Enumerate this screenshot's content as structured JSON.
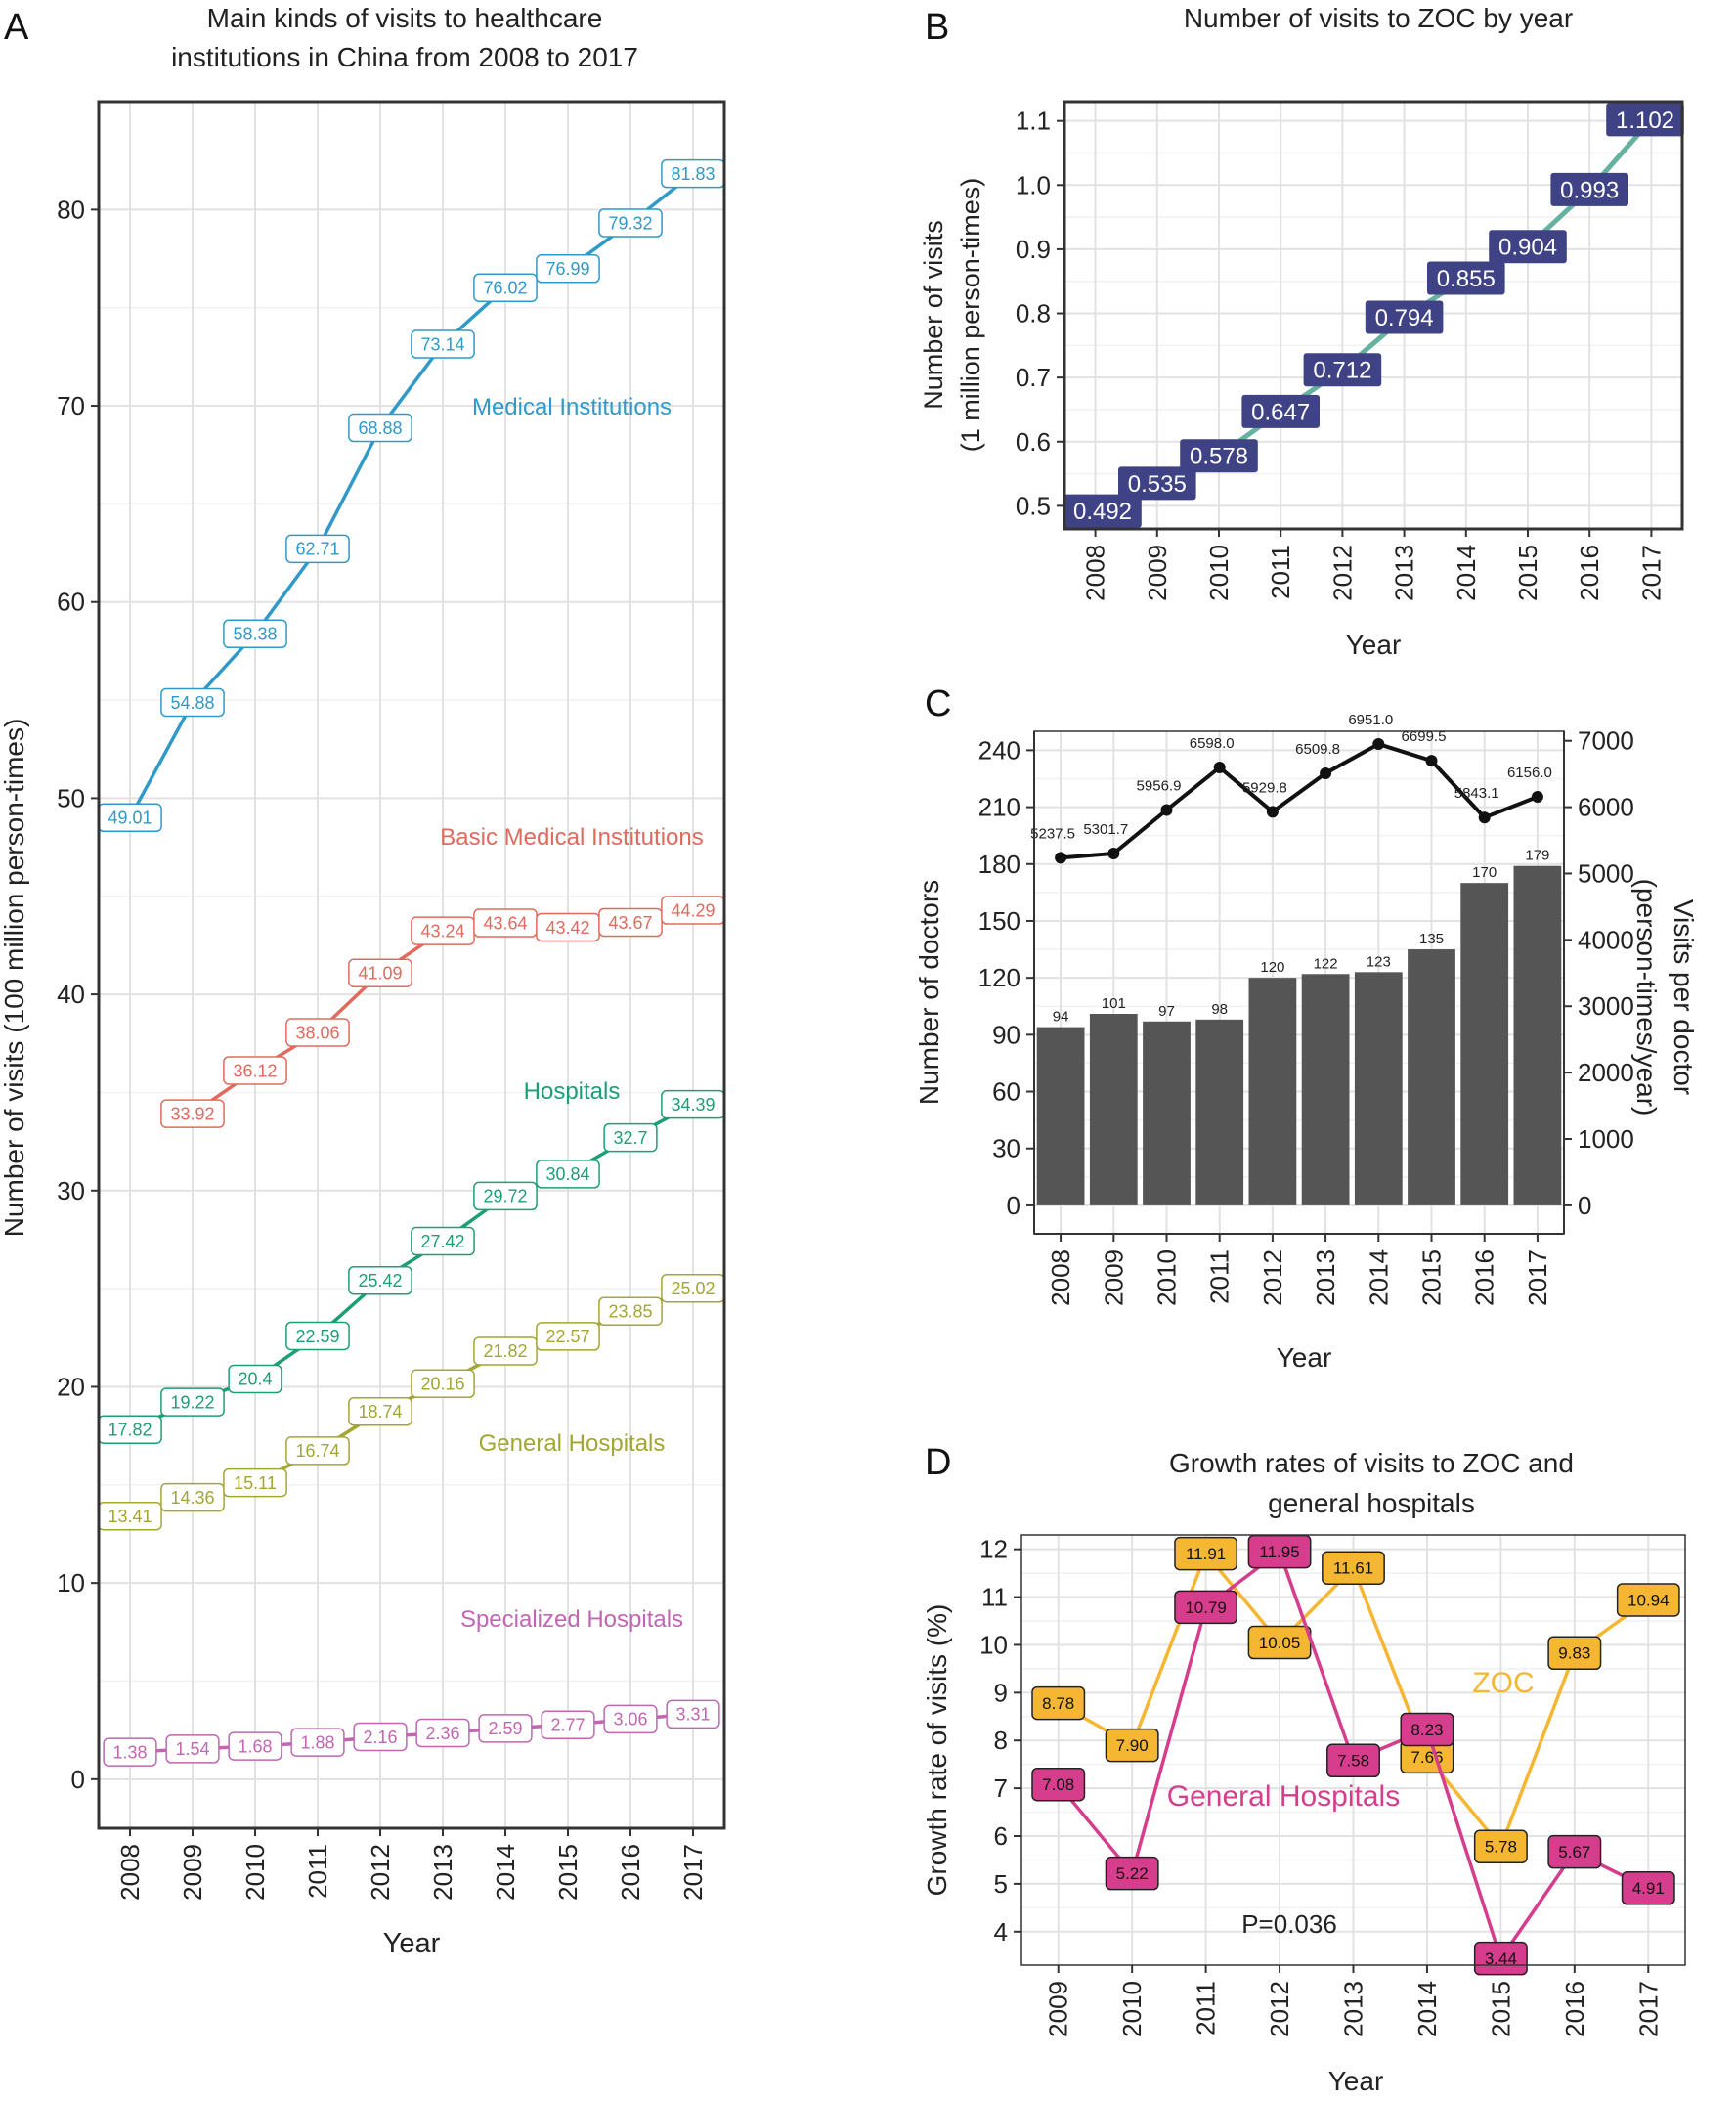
{
  "chart_data": [
    {
      "panel": "A",
      "type": "line",
      "title_lines": [
        "Main kinds of visits to healthcare",
        "institutions in China from 2008 to 2017"
      ],
      "xlabel": "Year",
      "ylabel": "Number of visits (100 million person-times)",
      "x": [
        "2008",
        "2009",
        "2010",
        "2011",
        "2012",
        "2013",
        "2014",
        "2015",
        "2016",
        "2017"
      ],
      "ylim": [
        -2.5,
        85.5
      ],
      "yticks": [
        0,
        10,
        20,
        30,
        40,
        50,
        60,
        70,
        80
      ],
      "grid": true,
      "series": [
        {
          "name": "Medical Institutions",
          "color": "#2f9ac9",
          "values": [
            49.01,
            54.88,
            58.38,
            62.71,
            68.88,
            73.14,
            76.02,
            76.99,
            79.32,
            81.83
          ],
          "labels": [
            "49.01",
            "54.88",
            "58.38",
            "62.71",
            "68.88",
            "73.14",
            "76.02",
            "76.99",
            "79.32",
            "81.83"
          ]
        },
        {
          "name": "Basic Medical Institutions",
          "color": "#e06a5e",
          "values": [
            null,
            33.92,
            36.12,
            38.06,
            41.09,
            43.24,
            43.64,
            43.42,
            43.67,
            44.29
          ],
          "labels": [
            null,
            "33.92",
            "36.12",
            "38.06",
            "41.09",
            "43.24",
            "43.64",
            "43.42",
            "43.67",
            "44.29"
          ]
        },
        {
          "name": "Hospitals",
          "color": "#1e9e74",
          "values": [
            17.82,
            19.22,
            20.4,
            22.59,
            25.42,
            27.42,
            29.72,
            30.84,
            32.7,
            34.39
          ],
          "labels": [
            "17.82",
            "19.22",
            "20.4",
            "22.59",
            "25.42",
            "27.42",
            "29.72",
            "30.84",
            "32.7",
            "34.39"
          ]
        },
        {
          "name": "General Hospitals",
          "color": "#a2a632",
          "values": [
            13.41,
            14.36,
            15.11,
            16.74,
            18.74,
            20.16,
            21.82,
            22.57,
            23.85,
            25.02
          ],
          "labels": [
            "13.41",
            "14.36",
            "15.11",
            "16.74",
            "18.74",
            "20.16",
            "21.82",
            "22.57",
            "23.85",
            "25.02"
          ]
        },
        {
          "name": "Specialized Hospitals",
          "color": "#c266b3",
          "values": [
            1.38,
            1.54,
            1.68,
            1.88,
            2.16,
            2.36,
            2.59,
            2.77,
            3.06,
            3.31
          ],
          "labels": [
            "1.38",
            "1.54",
            "1.68",
            "1.88",
            "2.16",
            "2.36",
            "2.59",
            "2.77",
            "3.06",
            "3.31"
          ]
        }
      ]
    },
    {
      "panel": "B",
      "type": "line",
      "title": "Number of visits to ZOC by year",
      "xlabel": "Year",
      "ylabel_lines": [
        "Number of visits",
        "(1 million person-times)"
      ],
      "x": [
        "2008",
        "2009",
        "2010",
        "2011",
        "2012",
        "2013",
        "2014",
        "2015",
        "2016",
        "2017"
      ],
      "ylim": [
        0.464,
        1.13
      ],
      "yticks": [
        0.5,
        0.6,
        0.7,
        0.8,
        0.9,
        1.0,
        1.1
      ],
      "ytick_labels": [
        "0.5",
        "0.6",
        "0.7",
        "0.8",
        "0.9",
        "1.0",
        "1.1"
      ],
      "grid": true,
      "series": [
        {
          "color": "#66b2a0",
          "label_fill": "#3f4386",
          "values": [
            0.492,
            0.535,
            0.578,
            0.647,
            0.712,
            0.794,
            0.855,
            0.904,
            0.993,
            1.102
          ],
          "labels": [
            "0.492",
            "0.535",
            "0.578",
            "0.647",
            "0.712",
            "0.794",
            "0.855",
            "0.904",
            "0.993",
            "1.102"
          ]
        }
      ]
    },
    {
      "panel": "C",
      "type": "bar",
      "xlabel": "Year",
      "ylabel": "Number of doctors",
      "y2label_lines": [
        "Visits per doctor",
        "(person-times/year)"
      ],
      "categories": [
        "2008",
        "2009",
        "2010",
        "2011",
        "2012",
        "2013",
        "2014",
        "2015",
        "2016",
        "2017"
      ],
      "ylim": [
        -15,
        250
      ],
      "yticks": [
        0,
        30,
        60,
        90,
        120,
        150,
        180,
        210,
        240
      ],
      "y2lim": [
        -429,
        7143
      ],
      "y2ticks": [
        0,
        1000,
        2000,
        3000,
        4000,
        5000,
        6000,
        7000
      ],
      "grid": true,
      "series": [
        {
          "name": "Number of doctors",
          "type": "bar",
          "color": "#555555",
          "values": [
            94,
            101,
            97,
            98,
            120,
            122,
            123,
            135,
            170,
            179
          ],
          "labels": [
            "94",
            "101",
            "97",
            "98",
            "120",
            "122",
            "123",
            "135",
            "170",
            "179"
          ]
        },
        {
          "name": "Visits per doctor",
          "type": "line",
          "axis": "right",
          "color": "#111111",
          "values": [
            5237.5,
            5301.7,
            5956.9,
            6598.0,
            5929.8,
            6509.8,
            6951.0,
            6699.5,
            5843.1,
            6156.0
          ],
          "labels": [
            "5237.5",
            "5301.7",
            "5956.9",
            "6598.0",
            "5929.8",
            "6509.8",
            "6951.0",
            "6699.5",
            "5843.1",
            "6156.0"
          ]
        }
      ]
    },
    {
      "panel": "D",
      "type": "line",
      "title_lines": [
        "Growth rates of visits to ZOC and",
        "general hospitals"
      ],
      "xlabel": "Year",
      "ylabel": "Growth rate of visits (%)",
      "x": [
        "2009",
        "2010",
        "2011",
        "2012",
        "2013",
        "2014",
        "2015",
        "2016",
        "2017"
      ],
      "ylim": [
        3.3,
        12.3
      ],
      "yticks": [
        4,
        5,
        6,
        7,
        8,
        9,
        10,
        11,
        12
      ],
      "grid": true,
      "annotation": "P=0.036",
      "series": [
        {
          "name": "ZOC",
          "color": "#f5b731",
          "values": [
            8.78,
            7.9,
            11.91,
            10.05,
            11.61,
            7.66,
            5.78,
            9.83,
            10.94
          ],
          "labels": [
            "8.78",
            "7.90",
            "11.91",
            "10.05",
            "11.61",
            "7.66",
            "5.78",
            "9.83",
            "10.94"
          ]
        },
        {
          "name": "General Hospitals",
          "color": "#d63d8c",
          "values": [
            7.08,
            5.22,
            10.79,
            11.95,
            7.58,
            8.23,
            3.44,
            5.67,
            4.91
          ],
          "labels": [
            "7.08",
            "5.22",
            "10.79",
            "11.95",
            "7.58",
            "8.23",
            "3.44",
            "5.67",
            "4.91"
          ]
        }
      ]
    }
  ],
  "panel_letters": [
    "A",
    "B",
    "C",
    "D"
  ]
}
